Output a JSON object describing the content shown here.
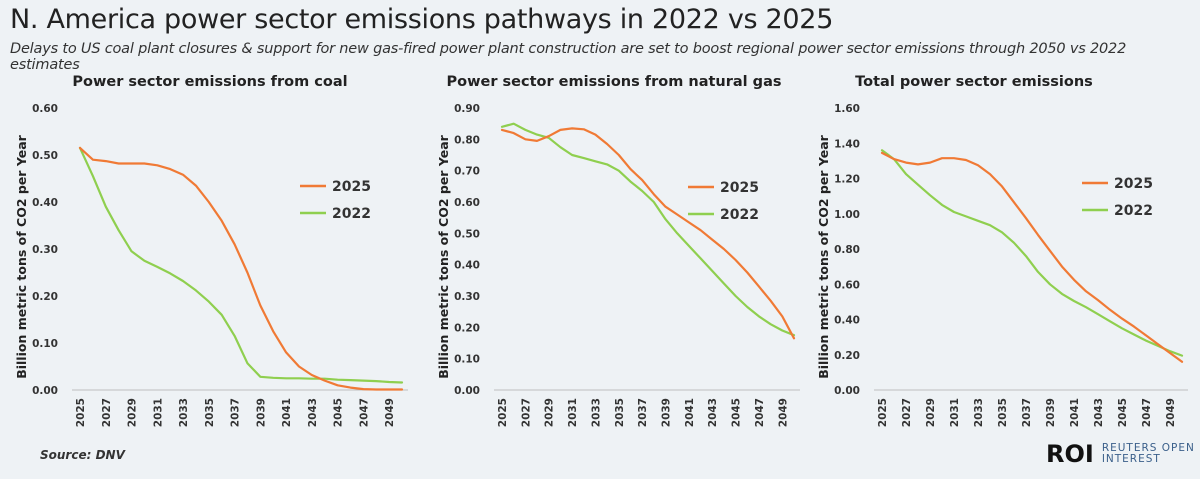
{
  "header": {
    "title": "N. America power sector emissions pathways in 2022 vs 2025",
    "subtitle": "Delays to US coal plant closures & support for new gas-fired power plant construction are set to boost regional power sector emissions through 2050 vs 2022 estimates"
  },
  "footer": {
    "source": "Source: DNV",
    "brand_mark": "ROI",
    "brand_line1": "REUTERS OPEN",
    "brand_line2": "INTEREST"
  },
  "colors": {
    "series_2025": "#f07a35",
    "series_2022": "#8fcf4f",
    "axis": "#bfbfbf",
    "text": "#222222"
  },
  "chart_data": [
    {
      "type": "line",
      "title": "Power sector emissions from coal",
      "xlabel": "",
      "ylabel": "Billion metric tons of CO2 per Year",
      "ylim": [
        0,
        0.6
      ],
      "yticks": [
        "0.00",
        "0.10",
        "0.20",
        "0.30",
        "0.40",
        "0.50",
        "0.60"
      ],
      "x": [
        2025,
        2026,
        2027,
        2028,
        2029,
        2030,
        2031,
        2032,
        2033,
        2034,
        2035,
        2036,
        2037,
        2038,
        2039,
        2040,
        2041,
        2042,
        2043,
        2044,
        2045,
        2046,
        2047,
        2048,
        2049,
        2050
      ],
      "xticks": [
        "2025",
        "2027",
        "2029",
        "2031",
        "2033",
        "2035",
        "2037",
        "2039",
        "2041",
        "2043",
        "2045",
        "2047",
        "2049"
      ],
      "grid": false,
      "legend_position": "right",
      "series": [
        {
          "name": "2025",
          "values": [
            0.515,
            0.49,
            0.487,
            0.482,
            0.482,
            0.482,
            0.478,
            0.47,
            0.458,
            0.435,
            0.4,
            0.36,
            0.31,
            0.25,
            0.18,
            0.125,
            0.08,
            0.05,
            0.032,
            0.02,
            0.01,
            0.005,
            0.002,
            0.001,
            0.001,
            0.001
          ]
        },
        {
          "name": "2022",
          "values": [
            0.515,
            0.455,
            0.39,
            0.34,
            0.295,
            0.275,
            0.262,
            0.248,
            0.232,
            0.212,
            0.188,
            0.16,
            0.115,
            0.057,
            0.028,
            0.026,
            0.025,
            0.025,
            0.024,
            0.024,
            0.022,
            0.021,
            0.02,
            0.019,
            0.017,
            0.016
          ]
        }
      ]
    },
    {
      "type": "line",
      "title": "Power sector emissions from natural gas",
      "xlabel": "",
      "ylabel": "Billion metric tons of CO2 per Year",
      "ylim": [
        0,
        0.9
      ],
      "yticks": [
        "0.00",
        "0.10",
        "0.20",
        "0.30",
        "0.40",
        "0.50",
        "0.60",
        "0.70",
        "0.80",
        "0.90"
      ],
      "x": [
        2025,
        2026,
        2027,
        2028,
        2029,
        2030,
        2031,
        2032,
        2033,
        2034,
        2035,
        2036,
        2037,
        2038,
        2039,
        2040,
        2041,
        2042,
        2043,
        2044,
        2045,
        2046,
        2047,
        2048,
        2049,
        2050
      ],
      "xticks": [
        "2025",
        "2027",
        "2029",
        "2031",
        "2033",
        "2035",
        "2037",
        "2039",
        "2041",
        "2043",
        "2045",
        "2047",
        "2049"
      ],
      "grid": false,
      "legend_position": "right",
      "series": [
        {
          "name": "2025",
          "values": [
            0.83,
            0.82,
            0.8,
            0.795,
            0.81,
            0.83,
            0.835,
            0.832,
            0.815,
            0.785,
            0.75,
            0.705,
            0.67,
            0.625,
            0.585,
            0.56,
            0.535,
            0.51,
            0.48,
            0.45,
            0.415,
            0.375,
            0.33,
            0.285,
            0.235,
            0.165
          ]
        },
        {
          "name": "2022",
          "values": [
            0.84,
            0.85,
            0.83,
            0.815,
            0.805,
            0.775,
            0.75,
            0.74,
            0.73,
            0.72,
            0.7,
            0.665,
            0.635,
            0.6,
            0.545,
            0.5,
            0.46,
            0.42,
            0.38,
            0.34,
            0.3,
            0.265,
            0.235,
            0.21,
            0.19,
            0.175
          ]
        }
      ]
    },
    {
      "type": "line",
      "title": "Total power sector emissions",
      "xlabel": "",
      "ylabel": "Billion metric tons of CO2 per Year",
      "ylim": [
        0,
        1.6
      ],
      "yticks": [
        "0.00",
        "0.20",
        "0.40",
        "0.60",
        "0.80",
        "1.00",
        "1.20",
        "1.40",
        "1.60"
      ],
      "x": [
        2025,
        2026,
        2027,
        2028,
        2029,
        2030,
        2031,
        2032,
        2033,
        2034,
        2035,
        2036,
        2037,
        2038,
        2039,
        2040,
        2041,
        2042,
        2043,
        2044,
        2045,
        2046,
        2047,
        2048,
        2049,
        2050
      ],
      "xticks": [
        "2025",
        "2027",
        "2029",
        "2031",
        "2033",
        "2035",
        "2037",
        "2039",
        "2041",
        "2043",
        "2045",
        "2047",
        "2049"
      ],
      "grid": false,
      "legend_position": "right",
      "series": [
        {
          "name": "2025",
          "values": [
            1.345,
            1.31,
            1.29,
            1.28,
            1.29,
            1.315,
            1.315,
            1.305,
            1.275,
            1.225,
            1.155,
            1.065,
            0.975,
            0.88,
            0.79,
            0.7,
            0.625,
            0.56,
            0.51,
            0.455,
            0.405,
            0.36,
            0.31,
            0.26,
            0.21,
            0.16
          ]
        },
        {
          "name": "2022",
          "values": [
            1.36,
            1.31,
            1.225,
            1.165,
            1.105,
            1.05,
            1.01,
            0.985,
            0.96,
            0.935,
            0.895,
            0.835,
            0.76,
            0.67,
            0.6,
            0.545,
            0.505,
            0.47,
            0.43,
            0.39,
            0.35,
            0.315,
            0.28,
            0.25,
            0.22,
            0.195
          ]
        }
      ]
    }
  ]
}
